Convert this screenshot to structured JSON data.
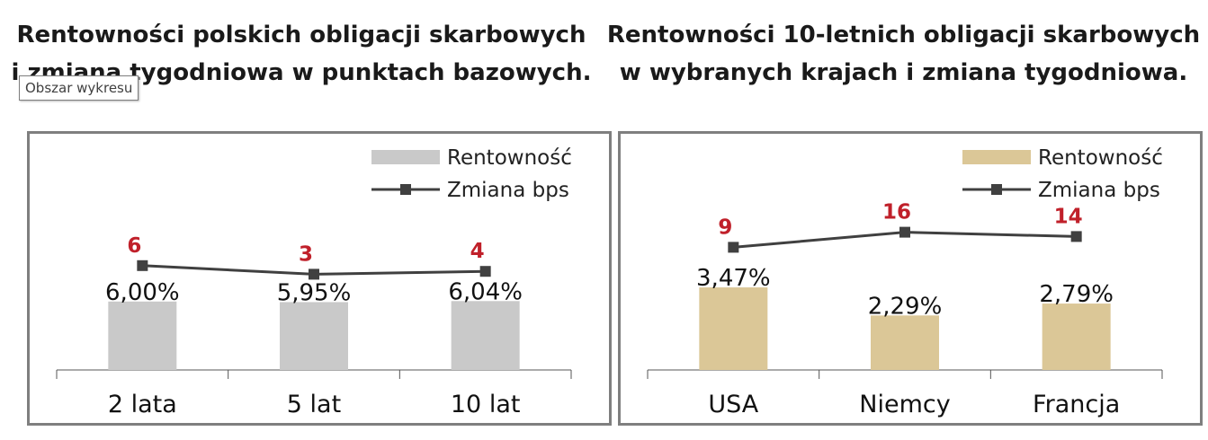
{
  "tooltip": "Obszar wykresu",
  "chart_data": [
    {
      "type": "bar",
      "title": "Rentowności polskich obligacji skarbowych\ni zmiana tygodniowa w punktach bazowych.",
      "categories": [
        "2 lata",
        "5 lat",
        "10 lat"
      ],
      "series": [
        {
          "name": "Rentowność",
          "kind": "bar",
          "values": [
            6.0,
            5.95,
            6.04
          ],
          "labels": [
            "6,00%",
            "5,95%",
            "6,04%"
          ],
          "color": "#c9c9c9"
        },
        {
          "name": "Zmiana bps",
          "kind": "line",
          "values": [
            6,
            3,
            4
          ],
          "labels": [
            "6",
            "3",
            "4"
          ],
          "color": "#404040",
          "label_color": "#c0202a"
        }
      ],
      "legend": "top-right",
      "grid": false
    },
    {
      "type": "bar",
      "title": "Rentowności 10-letnich obligacji skarbowych\nw wybranych krajach i zmiana tygodniowa.",
      "categories": [
        "USA",
        "Niemcy",
        "Francja"
      ],
      "series": [
        {
          "name": "Rentowność",
          "kind": "bar",
          "values": [
            3.47,
            2.29,
            2.79
          ],
          "labels": [
            "3,47%",
            "2,29%",
            "2,79%"
          ],
          "color": "#dbc797"
        },
        {
          "name": "Zmiana bps",
          "kind": "line",
          "values": [
            9,
            16,
            14
          ],
          "labels": [
            "9",
            "16",
            "14"
          ],
          "color": "#404040",
          "label_color": "#c0202a"
        }
      ],
      "legend": "top-right",
      "grid": false
    }
  ]
}
